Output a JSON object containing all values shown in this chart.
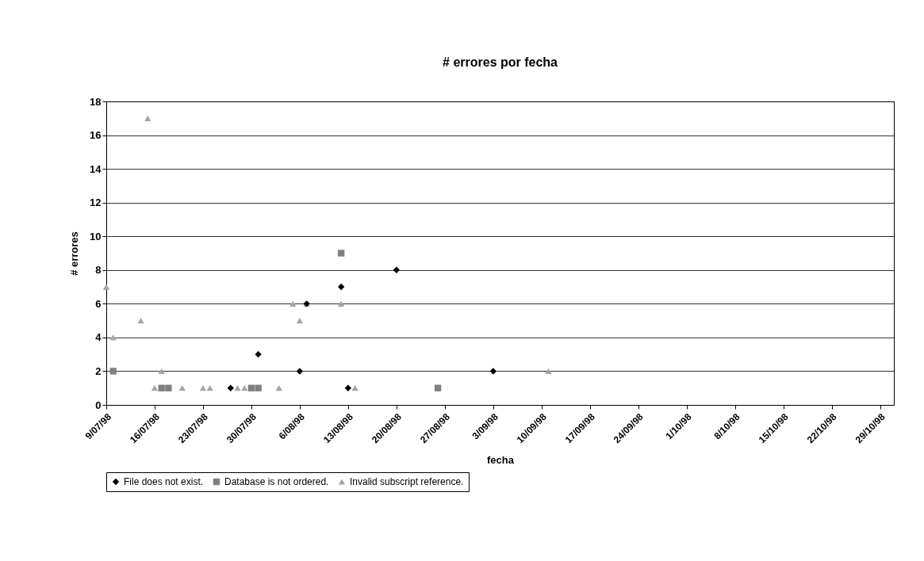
{
  "chart_data": {
    "type": "scatter",
    "title": "# errores por fecha",
    "xlabel": "fecha",
    "ylabel": "# errores",
    "xlim": [
      "1998-07-09",
      "1998-10-31"
    ],
    "xticks": [
      {
        "value": "1998-07-09",
        "label": "9/07/98"
      },
      {
        "value": "1998-07-16",
        "label": "16/07/98"
      },
      {
        "value": "1998-07-23",
        "label": "23/07/98"
      },
      {
        "value": "1998-07-30",
        "label": "30/07/98"
      },
      {
        "value": "1998-08-06",
        "label": "6/08/98"
      },
      {
        "value": "1998-08-13",
        "label": "13/08/98"
      },
      {
        "value": "1998-08-20",
        "label": "20/08/98"
      },
      {
        "value": "1998-08-27",
        "label": "27/08/98"
      },
      {
        "value": "1998-09-03",
        "label": "3/09/98"
      },
      {
        "value": "1998-09-10",
        "label": "10/09/98"
      },
      {
        "value": "1998-09-17",
        "label": "17/09/98"
      },
      {
        "value": "1998-09-24",
        "label": "24/09/98"
      },
      {
        "value": "1998-10-01",
        "label": "1/10/98"
      },
      {
        "value": "1998-10-08",
        "label": "8/10/98"
      },
      {
        "value": "1998-10-15",
        "label": "15/10/98"
      },
      {
        "value": "1998-10-22",
        "label": "22/10/98"
      },
      {
        "value": "1998-10-29",
        "label": "29/10/98"
      }
    ],
    "ylim": [
      0,
      18
    ],
    "yticks": [
      0,
      2,
      4,
      6,
      8,
      10,
      12,
      14,
      16,
      18
    ],
    "grid": "y",
    "legend": "bottom",
    "series": [
      {
        "name": "File does not exist.",
        "color": "#000000",
        "marker": "diamond",
        "x": [
          "1998-07-27",
          "1998-07-31",
          "1998-08-06",
          "1998-08-07",
          "1998-08-12",
          "1998-08-13",
          "1998-08-20",
          "1998-09-03"
        ],
        "values": [
          1,
          3,
          2,
          6,
          7,
          1,
          8,
          2
        ]
      },
      {
        "name": "Database is not ordered.",
        "color": "#808080",
        "marker": "square",
        "x": [
          "1998-07-10",
          "1998-07-17",
          "1998-07-18",
          "1998-07-30",
          "1998-07-31",
          "1998-08-12",
          "1998-08-26"
        ],
        "values": [
          2,
          1,
          1,
          1,
          1,
          9,
          1
        ]
      },
      {
        "name": "Invalid subscript reference.",
        "color": "#a6a6a6",
        "marker": "triangle",
        "x": [
          "1998-07-09",
          "1998-07-10",
          "1998-07-14",
          "1998-07-15",
          "1998-07-16",
          "1998-07-17",
          "1998-07-20",
          "1998-07-23",
          "1998-07-24",
          "1998-07-28",
          "1998-07-29",
          "1998-08-03",
          "1998-08-05",
          "1998-08-06",
          "1998-08-07",
          "1998-08-12",
          "1998-08-14",
          "1998-09-11"
        ],
        "values": [
          7,
          4,
          5,
          17,
          1,
          2,
          1,
          1,
          1,
          1,
          1,
          1,
          6,
          5,
          6,
          6,
          1,
          2
        ]
      }
    ]
  }
}
